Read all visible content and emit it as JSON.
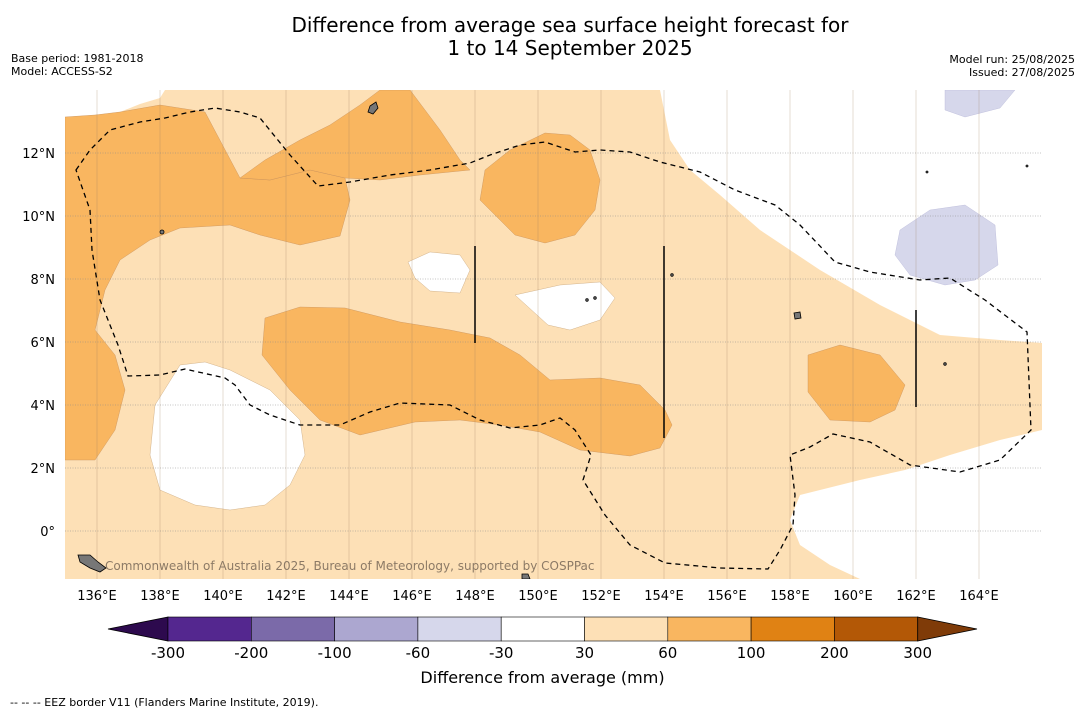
{
  "title": {
    "line1": "Difference from average sea surface height forecast for",
    "line2": "1 to 14 September 2025"
  },
  "meta_left": {
    "base_period": "Base period: 1981-2018",
    "model": "Model: ACCESS-S2"
  },
  "meta_right": {
    "model_run": "Model run: 25/08/2025",
    "issued": "Issued: 27/08/2025"
  },
  "map": {
    "lat_labels": [
      "12°N",
      "10°N",
      "8°N",
      "6°N",
      "4°N",
      "2°N",
      "0°"
    ],
    "lon_labels": [
      "136°E",
      "138°E",
      "140°E",
      "142°E",
      "144°E",
      "146°E",
      "148°E",
      "150°E",
      "152°E",
      "154°E",
      "156°E",
      "158°E",
      "160°E",
      "162°E",
      "164°E"
    ],
    "copyright": "Commonwealth of Australia 2025, Bureau of Meteorology, supported by COSPPac"
  },
  "colorbar": {
    "label": "Difference from average (mm)",
    "ticks": [
      "-300",
      "-200",
      "-100",
      "-60",
      "-30",
      "30",
      "60",
      "100",
      "200",
      "300"
    ],
    "colors": [
      "#2d0a4e",
      "#54278f",
      "#7b6aa9",
      "#aca7d0",
      "#d6d7eb",
      "#ffffff",
      "#fde0b6",
      "#f9b660",
      "#e08214",
      "#b35806",
      "#7f3b08"
    ]
  },
  "footnote": "--  --  -- EEZ border V11 (Flanders Marine Institute, 2019)."
}
